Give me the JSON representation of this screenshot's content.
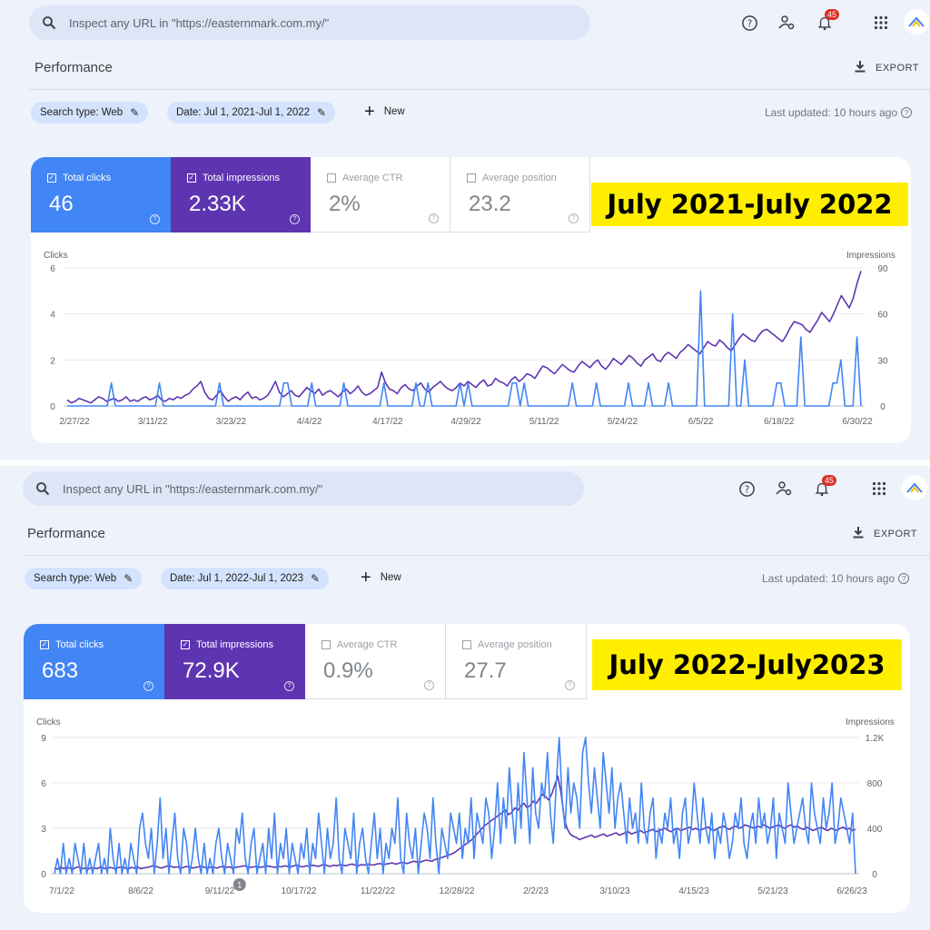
{
  "header": {
    "search_placeholder": "Inspect any URL in \"https://easternmark.com.my/\"",
    "notification_count": "45",
    "icons": [
      "search-icon",
      "help-icon",
      "account-settings-icon",
      "notifications-icon",
      "apps-grid-icon",
      "avatar"
    ]
  },
  "page_title": "Performance",
  "export_label": "EXPORT",
  "new_label": "New",
  "last_updated": "Last updated: 10 hours ago",
  "colors": {
    "clicks": "#4285f4",
    "impressions": "#5e35b1",
    "highlight": "#ffee00"
  },
  "panels": [
    {
      "filters": {
        "search_type": "Search type: Web",
        "date": "Date: Jul 1, 2021-Jul 1, 2022"
      },
      "metrics": {
        "clicks": {
          "label": "Total clicks",
          "value": "46"
        },
        "impressions": {
          "label": "Total impressions",
          "value": "2.33K"
        },
        "ctr": {
          "label": "Average CTR",
          "value": "2%"
        },
        "position": {
          "label": "Average position",
          "value": "23.2"
        }
      },
      "range_label": "July 2021-July 2022",
      "left_axis_title": "Clicks",
      "right_axis_title": "Impressions"
    },
    {
      "filters": {
        "search_type": "Search type: Web",
        "date": "Date: Jul 1, 2022-Jul 1, 2023"
      },
      "metrics": {
        "clicks": {
          "label": "Total clicks",
          "value": "683"
        },
        "impressions": {
          "label": "Total impressions",
          "value": "72.9K"
        },
        "ctr": {
          "label": "Average CTR",
          "value": "0.9%"
        },
        "position": {
          "label": "Average position",
          "value": "27.7"
        }
      },
      "range_label": "July 2022-July2023",
      "left_axis_title": "Clicks",
      "right_axis_title": "Impressions",
      "annotation_marker": "1"
    }
  ],
  "chart_data": [
    {
      "type": "line",
      "x_ticks": [
        "2/27/22",
        "3/11/22",
        "3/23/22",
        "4/4/22",
        "4/17/22",
        "4/29/22",
        "5/11/22",
        "5/24/22",
        "6/5/22",
        "6/18/22",
        "6/30/22"
      ],
      "y_left": {
        "label": "Clicks",
        "ticks": [
          "0",
          "2",
          "4",
          "6"
        ],
        "range": [
          0,
          6
        ]
      },
      "y_right": {
        "label": "Impressions",
        "ticks": [
          "0",
          "30",
          "60",
          "90"
        ],
        "range": [
          0,
          90
        ]
      },
      "grid": true,
      "series": [
        {
          "name": "Clicks",
          "axis": "left",
          "color": "#4285f4",
          "values": [
            0,
            0,
            0,
            0,
            0,
            0,
            0,
            0,
            0,
            0,
            0,
            1,
            0,
            0,
            0,
            0,
            0,
            0,
            0,
            0,
            0,
            0,
            0,
            1,
            0,
            0,
            0,
            0,
            0,
            0,
            0,
            0,
            0,
            0,
            0,
            0,
            0,
            0,
            1,
            0,
            0,
            0,
            0,
            0,
            0,
            0,
            0,
            0,
            0,
            0,
            0,
            0,
            0,
            0,
            1,
            1,
            0,
            0,
            0,
            0,
            0,
            1,
            0,
            0,
            0,
            0,
            0,
            0,
            0,
            1,
            0,
            0,
            0,
            0,
            0,
            0,
            0,
            0,
            0,
            1,
            0,
            0,
            0,
            0,
            0,
            0,
            0,
            1,
            0,
            0,
            1,
            0,
            0,
            0,
            0,
            0,
            0,
            0,
            1,
            0,
            1,
            0,
            0,
            0,
            0,
            0,
            0,
            0,
            0,
            0,
            0,
            1,
            1,
            0,
            1,
            0,
            0,
            0,
            0,
            0,
            0,
            0,
            0,
            0,
            0,
            0,
            1,
            0,
            0,
            0,
            0,
            0,
            1,
            0,
            0,
            0,
            0,
            0,
            0,
            0,
            1,
            0,
            0,
            0,
            0,
            1,
            0,
            0,
            0,
            0,
            1,
            0,
            0,
            0,
            0,
            0,
            0,
            0,
            5,
            0,
            0,
            0,
            0,
            0,
            0,
            0,
            4,
            0,
            0,
            2,
            0,
            0,
            0,
            0,
            0,
            0,
            0,
            1,
            1,
            0,
            0,
            0,
            0,
            3,
            0,
            0,
            0,
            0,
            0,
            0,
            0,
            1,
            1,
            2,
            0,
            0,
            0,
            3,
            0
          ]
        },
        {
          "name": "Impressions",
          "axis": "right",
          "color": "#5e35b1",
          "values": [
            4,
            2,
            3,
            5,
            4,
            3,
            2,
            4,
            6,
            5,
            3,
            4,
            5,
            3,
            4,
            6,
            3,
            4,
            3,
            5,
            6,
            4,
            5,
            7,
            4,
            3,
            5,
            4,
            6,
            5,
            7,
            8,
            11,
            13,
            16,
            9,
            5,
            4,
            7,
            10,
            6,
            3,
            5,
            6,
            4,
            7,
            9,
            5,
            6,
            4,
            5,
            7,
            11,
            16,
            9,
            6,
            8,
            10,
            7,
            6,
            9,
            12,
            10,
            8,
            11,
            7,
            9,
            10,
            8,
            6,
            9,
            11,
            8,
            10,
            13,
            9,
            7,
            8,
            10,
            12,
            22,
            15,
            11,
            10,
            8,
            12,
            14,
            11,
            10,
            13,
            15,
            11,
            9,
            12,
            14,
            16,
            13,
            11,
            10,
            12,
            15,
            13,
            16,
            14,
            12,
            15,
            17,
            13,
            14,
            18,
            16,
            15,
            13,
            17,
            19,
            16,
            18,
            21,
            20,
            18,
            22,
            26,
            25,
            23,
            21,
            24,
            27,
            25,
            23,
            22,
            26,
            29,
            27,
            25,
            28,
            30,
            26,
            24,
            27,
            31,
            29,
            27,
            30,
            33,
            31,
            28,
            26,
            30,
            32,
            34,
            30,
            29,
            33,
            35,
            33,
            31,
            35,
            37,
            40,
            38,
            36,
            34,
            38,
            42,
            40,
            39,
            43,
            41,
            38,
            36,
            40,
            44,
            47,
            45,
            43,
            42,
            46,
            49,
            50,
            48,
            46,
            44,
            42,
            46,
            51,
            55,
            54,
            53,
            50,
            48,
            52,
            56,
            61,
            58,
            55,
            60,
            66,
            72,
            68,
            64,
            70,
            80,
            88
          ]
        }
      ]
    },
    {
      "type": "line",
      "x_ticks": [
        "7/1/22",
        "8/6/22",
        "9/11/22",
        "10/17/22",
        "11/22/22",
        "12/28/22",
        "2/2/23",
        "3/10/23",
        "4/15/23",
        "5/21/23",
        "6/26/23"
      ],
      "y_left": {
        "label": "Clicks",
        "ticks": [
          "0",
          "3",
          "6",
          "9"
        ],
        "range": [
          0,
          9
        ]
      },
      "y_right": {
        "label": "Impressions",
        "ticks": [
          "0",
          "400",
          "800",
          "1.2K"
        ],
        "range": [
          0,
          1200
        ]
      },
      "grid": true,
      "series": [
        {
          "name": "Clicks",
          "axis": "left",
          "color": "#4285f4",
          "values": [
            0,
            1,
            0,
            2,
            0,
            1,
            0,
            2,
            1,
            0,
            2,
            0,
            1,
            0,
            1,
            2,
            0,
            1,
            0,
            3,
            1,
            0,
            2,
            0,
            1,
            0,
            2,
            1,
            0,
            3,
            4,
            2,
            1,
            3,
            0,
            2,
            5,
            1,
            3,
            0,
            2,
            4,
            1,
            0,
            3,
            2,
            0,
            1,
            3,
            1,
            0,
            2,
            0,
            1,
            0,
            2,
            3,
            1,
            0,
            2,
            1,
            0,
            3,
            2,
            4,
            1,
            0,
            2,
            3,
            0,
            1,
            2,
            0,
            3,
            1,
            4,
            0,
            2,
            1,
            3,
            0,
            2,
            1,
            0,
            2,
            1,
            3,
            0,
            2,
            1,
            4,
            2,
            0,
            3,
            1,
            2,
            5,
            1,
            0,
            3,
            2,
            1,
            4,
            0,
            2,
            3,
            1,
            0,
            2,
            4,
            1,
            3,
            0,
            2,
            1,
            3,
            2,
            5,
            1,
            0,
            4,
            2,
            1,
            3,
            0,
            2,
            4,
            3,
            1,
            5,
            2,
            0,
            3,
            2,
            1,
            4,
            3,
            2,
            4,
            1,
            3,
            2,
            5,
            1,
            4,
            3,
            2,
            5,
            4,
            1,
            3,
            6,
            2,
            5,
            3,
            7,
            4,
            2,
            6,
            3,
            8,
            5,
            2,
            7,
            4,
            3,
            6,
            5,
            8,
            4,
            2,
            6,
            9,
            5,
            3,
            7,
            4,
            6,
            5,
            3,
            8,
            9,
            6,
            4,
            7,
            5,
            3,
            8,
            6,
            4,
            7,
            3,
            5,
            6,
            4,
            2,
            5,
            3,
            4,
            2,
            6,
            3,
            2,
            4,
            5,
            1,
            3,
            2,
            4,
            3,
            5,
            2,
            3,
            1,
            4,
            5,
            2,
            3,
            6,
            4,
            2,
            5,
            3,
            2,
            4,
            1,
            3,
            2,
            4,
            3,
            1,
            2,
            4,
            3,
            5,
            2,
            1,
            3,
            4,
            2,
            5,
            3,
            4,
            2,
            3,
            5,
            1,
            4,
            3,
            2,
            6,
            4,
            2,
            3,
            4,
            5,
            3,
            2,
            6,
            4,
            3,
            2,
            5,
            3,
            4,
            6,
            2,
            3,
            5,
            4,
            3,
            2,
            4,
            0
          ]
        },
        {
          "name": "Impressions",
          "axis": "right",
          "color": "#5e35b1",
          "values": [
            50,
            40,
            60,
            45,
            55,
            50,
            40,
            55,
            60,
            45,
            50,
            40,
            55,
            50,
            45,
            60,
            50,
            40,
            55,
            50,
            45,
            55,
            60,
            50,
            40,
            55,
            50,
            60,
            45,
            50,
            55,
            60,
            70,
            65,
            55,
            50,
            60,
            70,
            65,
            55,
            60,
            50,
            55,
            65,
            60,
            50,
            55,
            60,
            65,
            55,
            50,
            60,
            55,
            50,
            60,
            65,
            55,
            60,
            50,
            55,
            60,
            65,
            70,
            60,
            55,
            60,
            65,
            55,
            60,
            70,
            65,
            60,
            55,
            65,
            60,
            70,
            65,
            60,
            70,
            75,
            65,
            60,
            70,
            65,
            75,
            70,
            65,
            75,
            80,
            70,
            65,
            75,
            70,
            80,
            75,
            70,
            80,
            85,
            75,
            70,
            80,
            75,
            85,
            80,
            75,
            85,
            90,
            80,
            85,
            90,
            95,
            85,
            90,
            100,
            95,
            90,
            100,
            110,
            105,
            100,
            110,
            120,
            115,
            110,
            125,
            130,
            140,
            150,
            160,
            170,
            180,
            200,
            220,
            240,
            260,
            280,
            300,
            330,
            360,
            390,
            420,
            440,
            460,
            480,
            500,
            520,
            540,
            560,
            520,
            540,
            580,
            560,
            600,
            620,
            580,
            600,
            640,
            620,
            660,
            700,
            680,
            650,
            700,
            780,
            860,
            720,
            500,
            400,
            350,
            330,
            320,
            300,
            310,
            320,
            330,
            340,
            320,
            330,
            340,
            350,
            330,
            340,
            350,
            360,
            340,
            350,
            360,
            370,
            350,
            360,
            370,
            380,
            360,
            370,
            380,
            390,
            370,
            380,
            390,
            400,
            380,
            370,
            390,
            400,
            380,
            390,
            400,
            410,
            390,
            400,
            380,
            390,
            400,
            410,
            390,
            380,
            400,
            410,
            420,
            400,
            390,
            410,
            420,
            400,
            410,
            430,
            420,
            410,
            400,
            420,
            410,
            430,
            420,
            400,
            410,
            420,
            430,
            410,
            400,
            420,
            430,
            410,
            420,
            400,
            390,
            410,
            400,
            380,
            390,
            400,
            410,
            390,
            380,
            400,
            390,
            380,
            400,
            410,
            390,
            400,
            380,
            390
          ]
        }
      ]
    }
  ]
}
